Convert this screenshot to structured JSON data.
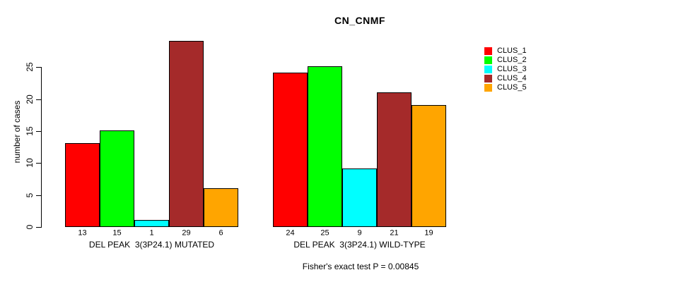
{
  "title": "CN_CNMF",
  "ylabel": "number of cases",
  "footer": "Fisher's exact test P = 0.00845",
  "legend": {
    "items": [
      {
        "label": "CLUS_1",
        "color": "#FF0000"
      },
      {
        "label": "CLUS_2",
        "color": "#00FF00"
      },
      {
        "label": "CLUS_3",
        "color": "#00FFFF"
      },
      {
        "label": "CLUS_4",
        "color": "#A52A2A"
      },
      {
        "label": "CLUS_5",
        "color": "#FFA500"
      }
    ]
  },
  "chart_data": {
    "type": "bar",
    "title": "CN_CNMF",
    "xlabel": "",
    "ylabel": "number of cases",
    "ylim": [
      0,
      29
    ],
    "yticks": [
      0,
      5,
      10,
      15,
      20,
      25
    ],
    "grid": false,
    "legend_position": "right-outside",
    "series_names": [
      "CLUS_1",
      "CLUS_2",
      "CLUS_3",
      "CLUS_4",
      "CLUS_5"
    ],
    "series_colors": [
      "#FF0000",
      "#00FF00",
      "#00FFFF",
      "#A52A2A",
      "#FFA500"
    ],
    "groups": [
      {
        "label": "DEL PEAK  3(3P24.1) MUTATED",
        "values": [
          13,
          15,
          1,
          29,
          6
        ]
      },
      {
        "label": "DEL PEAK  3(3P24.1) WILD-TYPE",
        "values": [
          24,
          25,
          9,
          21,
          19
        ]
      }
    ],
    "bar_value_labels_shown": true,
    "annotation": "Fisher's exact test P = 0.00845"
  }
}
